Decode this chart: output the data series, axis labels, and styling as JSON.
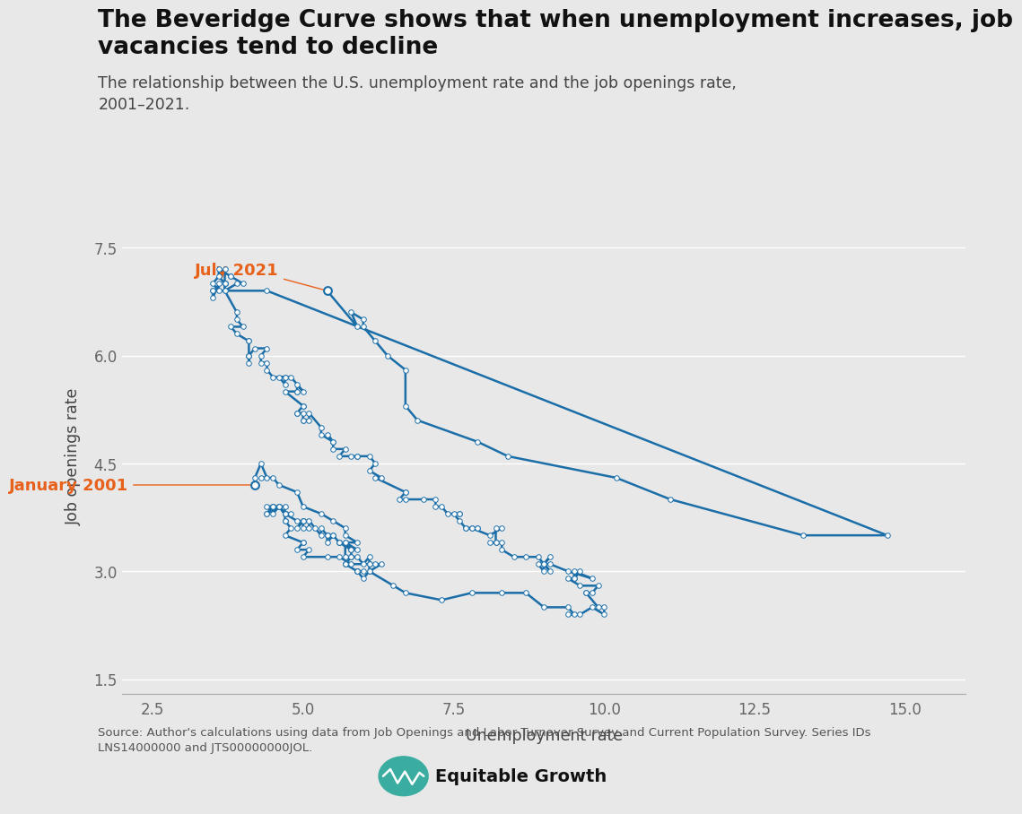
{
  "title_line1": "The Beveridge Curve shows that when unemployment increases, job",
  "title_line2": "vacancies tend to decline",
  "subtitle": "The relationship between the U.S. unemployment rate and the job openings rate,\n2001–2021.",
  "xlabel": "Unemployment rate",
  "ylabel": "Job openings rate",
  "source": "Source: Author's calculations using data from Job Openings and Labor Turnover Survey and Current Population Survey. Series IDs\nLNS14000000 and JTS00000000JOL.",
  "annotation_july2021": "July 2021",
  "annotation_jan2001": "January 2001",
  "line_color": "#1B6EA8",
  "marker_face": "#ffffff",
  "marker_edge": "#1B6EA8",
  "annotation_color": "#E8611A",
  "bg_color": "#e8e8e8",
  "grid_color": "#ffffff",
  "tick_color": "#666666",
  "xlim": [
    2.0,
    16.0
  ],
  "ylim": [
    1.3,
    7.9
  ],
  "xticks": [
    2.5,
    5.0,
    7.5,
    10.0,
    12.5,
    15.0
  ],
  "yticks": [
    1.5,
    3.0,
    4.5,
    6.0,
    7.5
  ],
  "logo_color": "#3aada0",
  "logo_text": "Equitable Growth",
  "unemp": [
    4.2,
    4.2,
    4.3,
    4.4,
    4.3,
    4.5,
    4.6,
    4.9,
    5.0,
    5.3,
    5.5,
    5.7,
    5.7,
    5.9,
    5.7,
    5.9,
    5.8,
    5.8,
    5.8,
    5.7,
    5.7,
    5.7,
    5.9,
    6.0,
    5.9,
    5.9,
    5.9,
    6.0,
    6.1,
    6.3,
    6.2,
    6.1,
    6.1,
    6.0,
    5.9,
    5.8,
    5.7,
    5.7,
    5.8,
    5.6,
    5.6,
    5.6,
    5.5,
    5.4,
    5.4,
    5.5,
    5.4,
    5.4,
    5.3,
    5.3,
    5.2,
    5.1,
    5.1,
    5.0,
    5.0,
    4.9,
    5.0,
    5.0,
    5.0,
    4.9,
    4.7,
    4.8,
    4.7,
    4.7,
    4.6,
    4.6,
    4.7,
    4.7,
    4.5,
    4.4,
    4.5,
    4.4,
    4.6,
    4.5,
    4.4,
    4.5,
    4.5,
    4.6,
    4.7,
    4.7,
    4.7,
    4.8,
    4.7,
    5.0,
    5.0,
    4.9,
    5.1,
    5.0,
    5.4,
    5.6,
    5.8,
    6.1,
    6.1,
    6.5,
    6.7,
    7.3,
    7.8,
    8.3,
    8.7,
    9.0,
    9.4,
    9.5,
    9.4,
    9.6,
    9.8,
    10.0,
    10.0,
    9.9,
    9.7,
    9.7,
    9.8,
    9.9,
    9.6,
    9.4,
    9.5,
    9.6,
    9.5,
    9.5,
    9.8,
    9.4,
    9.1,
    9.0,
    8.9,
    9.0,
    9.0,
    9.1,
    9.0,
    9.0,
    9.1,
    8.9,
    8.7,
    8.5,
    8.3,
    8.3,
    8.2,
    8.1,
    8.2,
    8.2,
    8.3,
    8.1,
    7.8,
    7.8,
    7.7,
    7.9,
    7.9,
    7.7,
    7.6,
    7.5,
    7.6,
    7.6,
    7.4,
    7.3,
    7.2,
    7.2,
    7.0,
    6.7,
    6.6,
    6.7,
    6.7,
    6.2,
    6.3,
    6.1,
    6.2,
    6.1,
    5.9,
    5.9,
    5.8,
    5.6,
    5.7,
    5.5,
    5.5,
    5.4,
    5.5,
    5.3,
    5.3,
    5.1,
    5.1,
    5.0,
    5.0,
    5.0,
    4.9,
    4.9,
    5.0,
    5.0,
    4.7,
    4.9,
    4.9,
    4.9,
    5.0,
    4.8,
    4.6,
    4.7,
    4.7,
    4.7,
    4.5,
    4.4,
    4.4,
    4.3,
    4.3,
    4.4,
    4.2,
    4.1,
    4.1,
    4.1,
    4.1,
    4.1,
    4.1,
    3.9,
    3.8,
    4.0,
    3.9,
    3.9,
    3.7,
    3.7,
    3.7,
    3.9,
    4.0,
    3.8,
    3.8,
    3.6,
    3.6,
    3.7,
    3.7,
    3.7,
    3.5,
    3.6,
    3.6,
    3.5,
    3.5,
    3.5,
    4.4,
    14.7,
    13.3,
    11.1,
    10.2,
    8.4,
    7.9,
    6.9,
    6.7,
    6.7,
    6.4,
    6.2,
    6.0,
    6.0,
    5.8,
    5.9,
    5.4
  ],
  "jobs": [
    4.2,
    4.3,
    4.5,
    4.3,
    4.3,
    4.3,
    4.2,
    4.1,
    3.9,
    3.8,
    3.7,
    3.6,
    3.5,
    3.4,
    3.4,
    3.3,
    3.3,
    3.2,
    3.2,
    3.1,
    3.1,
    3.1,
    3.0,
    3.0,
    3.0,
    3.0,
    3.0,
    2.9,
    3.0,
    3.1,
    3.1,
    3.1,
    3.2,
    3.1,
    3.2,
    3.2,
    3.2,
    3.4,
    3.3,
    3.4,
    3.4,
    3.4,
    3.5,
    3.4,
    3.5,
    3.5,
    3.5,
    3.5,
    3.6,
    3.5,
    3.6,
    3.7,
    3.6,
    3.6,
    3.7,
    3.6,
    3.7,
    3.7,
    3.7,
    3.7,
    3.8,
    3.8,
    3.8,
    3.8,
    3.9,
    3.9,
    3.8,
    3.9,
    3.9,
    3.9,
    3.9,
    3.8,
    3.9,
    3.9,
    3.8,
    3.9,
    3.8,
    3.9,
    3.8,
    3.7,
    3.7,
    3.6,
    3.5,
    3.4,
    3.4,
    3.3,
    3.3,
    3.2,
    3.2,
    3.2,
    3.1,
    3.1,
    3.0,
    2.8,
    2.7,
    2.6,
    2.7,
    2.7,
    2.7,
    2.5,
    2.5,
    2.4,
    2.4,
    2.4,
    2.5,
    2.4,
    2.5,
    2.5,
    2.7,
    2.7,
    2.7,
    2.8,
    2.8,
    2.9,
    2.9,
    3.0,
    2.9,
    3.0,
    2.9,
    3.0,
    3.1,
    3.1,
    3.1,
    3.0,
    3.1,
    3.2,
    3.1,
    3.1,
    3.0,
    3.2,
    3.2,
    3.2,
    3.3,
    3.4,
    3.4,
    3.4,
    3.4,
    3.6,
    3.6,
    3.5,
    3.6,
    3.6,
    3.6,
    3.6,
    3.6,
    3.6,
    3.7,
    3.8,
    3.8,
    3.8,
    3.8,
    3.9,
    3.9,
    4.0,
    4.0,
    4.0,
    4.0,
    4.1,
    4.1,
    4.3,
    4.3,
    4.4,
    4.5,
    4.6,
    4.6,
    4.6,
    4.6,
    4.6,
    4.7,
    4.7,
    4.8,
    4.9,
    4.8,
    4.9,
    5.0,
    5.2,
    5.1,
    5.1,
    5.1,
    5.2,
    5.2,
    5.2,
    5.3,
    5.3,
    5.5,
    5.5,
    5.5,
    5.6,
    5.5,
    5.7,
    5.7,
    5.6,
    5.7,
    5.7,
    5.7,
    5.8,
    5.9,
    5.9,
    6.0,
    6.1,
    6.1,
    6.0,
    6.0,
    5.9,
    6.0,
    6.2,
    6.2,
    6.3,
    6.4,
    6.4,
    6.5,
    6.6,
    6.9,
    7.0,
    6.9,
    7.0,
    7.0,
    7.1,
    7.1,
    7.2,
    7.1,
    7.0,
    7.0,
    7.2,
    7.0,
    6.9,
    7.0,
    6.8,
    6.9,
    6.9,
    6.9,
    3.5,
    3.5,
    4.0,
    4.3,
    4.6,
    4.8,
    5.1,
    5.3,
    5.8,
    6.0,
    6.2,
    6.4,
    6.5,
    6.6,
    6.4,
    6.9
  ]
}
